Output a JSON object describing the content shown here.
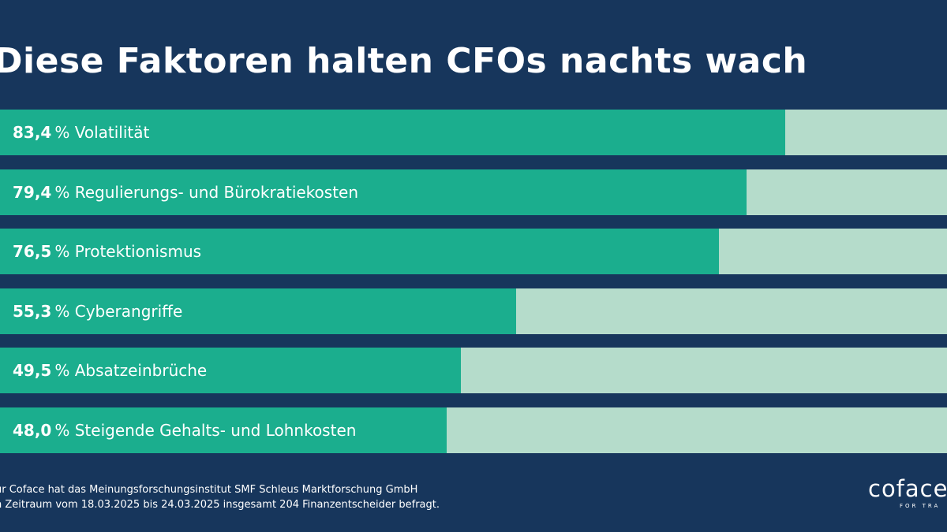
{
  "chart_data": {
    "type": "bar",
    "orientation": "horizontal",
    "title": "Diese Faktoren halten CFOs nachts wach",
    "categories": [
      "Volatilität",
      "Regulierungs- und Bürokratiekosten",
      "Protektionismus",
      "Cyberangriffe",
      "Absatzeinbrüche",
      "Steigende Gehalts- und Lohnkosten"
    ],
    "values": [
      83.4,
      79.4,
      76.5,
      55.3,
      49.5,
      48.0
    ],
    "value_labels": [
      "83,4",
      "79,4",
      "76,5",
      "55,3",
      "49,5",
      "48,0"
    ],
    "unit": "%",
    "xlim": [
      0,
      100
    ],
    "grid": false,
    "colors": {
      "background": "#17365c",
      "bar": "#1bae8e",
      "track": "#b5dccb"
    }
  },
  "footer": {
    "line1": "ür Coface hat das Meinungsforschungsinstitut SMF Schleus Marktforschung GmbH",
    "line2": "n Zeitraum vom 18.03.2025 bis 24.03.2025 insgesamt 204 Finanzentscheider befragt."
  },
  "logo": {
    "wordmark": "coface",
    "tagline": "FOR TRA"
  }
}
